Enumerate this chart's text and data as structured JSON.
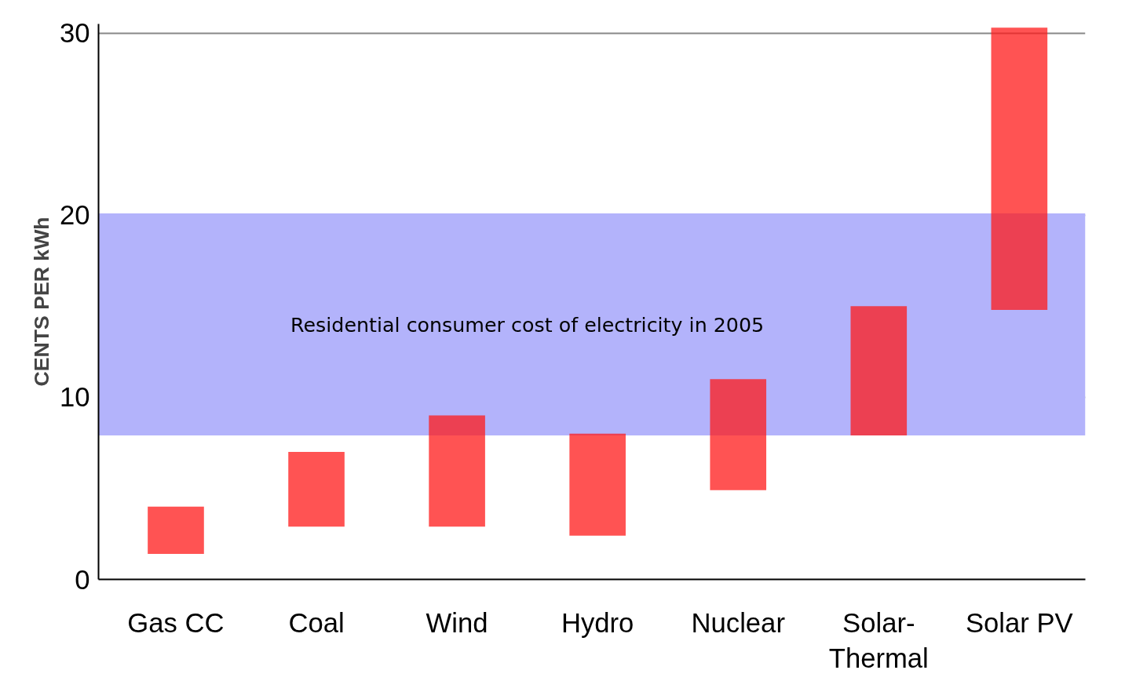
{
  "chart_data": {
    "type": "bar",
    "ylabel": "CENTS PER kWh",
    "categories": [
      "Gas CC",
      "Coal",
      "Wind",
      "Hydro",
      "Nuclear",
      "Solar-\nThermal",
      "Solar PV"
    ],
    "base": [
      1.4,
      2.9,
      2.9,
      2.4,
      4.9,
      7.9,
      14.8
    ],
    "values": [
      2.6,
      4.1,
      6.1,
      5.6,
      6.1,
      7.1,
      15.5
    ],
    "color": "#ff1a1a",
    "ylim": [
      0,
      30.5
    ],
    "yticks": [
      0,
      10,
      20,
      30
    ],
    "grid": "y",
    "bands": [
      {
        "axis": "y",
        "from": 7.9,
        "to": 20.1,
        "label": "Residential consumer cost of electricity in 2005",
        "color": "#b3b3fb"
      }
    ]
  }
}
